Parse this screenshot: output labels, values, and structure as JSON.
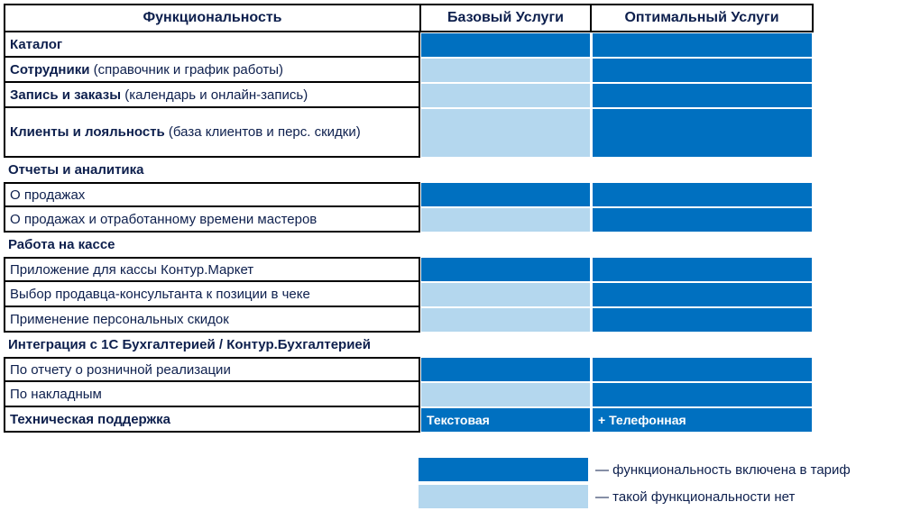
{
  "header": {
    "func": "Функциональность",
    "basic": "Базовый Услуги",
    "opt": "Оптимальный Услуги"
  },
  "rows": {
    "catalog": {
      "bold": "Каталог",
      "normal": "",
      "basic": "included",
      "opt": "included"
    },
    "staff": {
      "bold": "Сотрудники",
      "normal": " (справочник и график работы)",
      "basic": "not-available",
      "opt": "included"
    },
    "booking": {
      "bold": "Запись и заказы",
      "normal": " (календарь и онлайн-запись)",
      "basic": "not-available",
      "opt": "included"
    },
    "clients": {
      "bold": "Клиенты и лояльность",
      "normal": " (база клиентов и перс. скидки)",
      "basic": "not-available",
      "opt": "included"
    },
    "reports_section": "Отчеты и аналитика",
    "sales": {
      "text": "О продажах",
      "basic": "included",
      "opt": "included"
    },
    "sales_time": {
      "text": "О продажах и отработанному времени мастеров",
      "basic": "not-available",
      "opt": "included"
    },
    "cash_section": "Работа на кассе",
    "cash_app": {
      "text": "Приложение для кассы Контур.Маркет",
      "basic": "included",
      "opt": "included"
    },
    "seller": {
      "text": "Выбор продавца-консультанта к позиции в чеке",
      "basic": "not-available",
      "opt": "included"
    },
    "discounts": {
      "text": "Применение персональных скидок",
      "basic": "not-available",
      "opt": "included"
    },
    "integration_section": "Интеграция с 1С Бухгалтерией / Контур.Бухгалтерией",
    "retail_report": {
      "text": "По отчету о розничной реализации",
      "basic": "included",
      "opt": "included"
    },
    "invoices": {
      "text": "По накладным",
      "basic": "not-available",
      "opt": "included"
    },
    "support": {
      "text": "Техническая поддержка",
      "basic": "Текстовая",
      "opt": "+ Телефонная"
    }
  },
  "legend": {
    "included": "— функциональность включена в тариф",
    "absent": "— такой функциональности нет"
  },
  "colors": {
    "included": "#0070c0",
    "absent": "#b4d7ee",
    "text": "#0d1f4d"
  }
}
